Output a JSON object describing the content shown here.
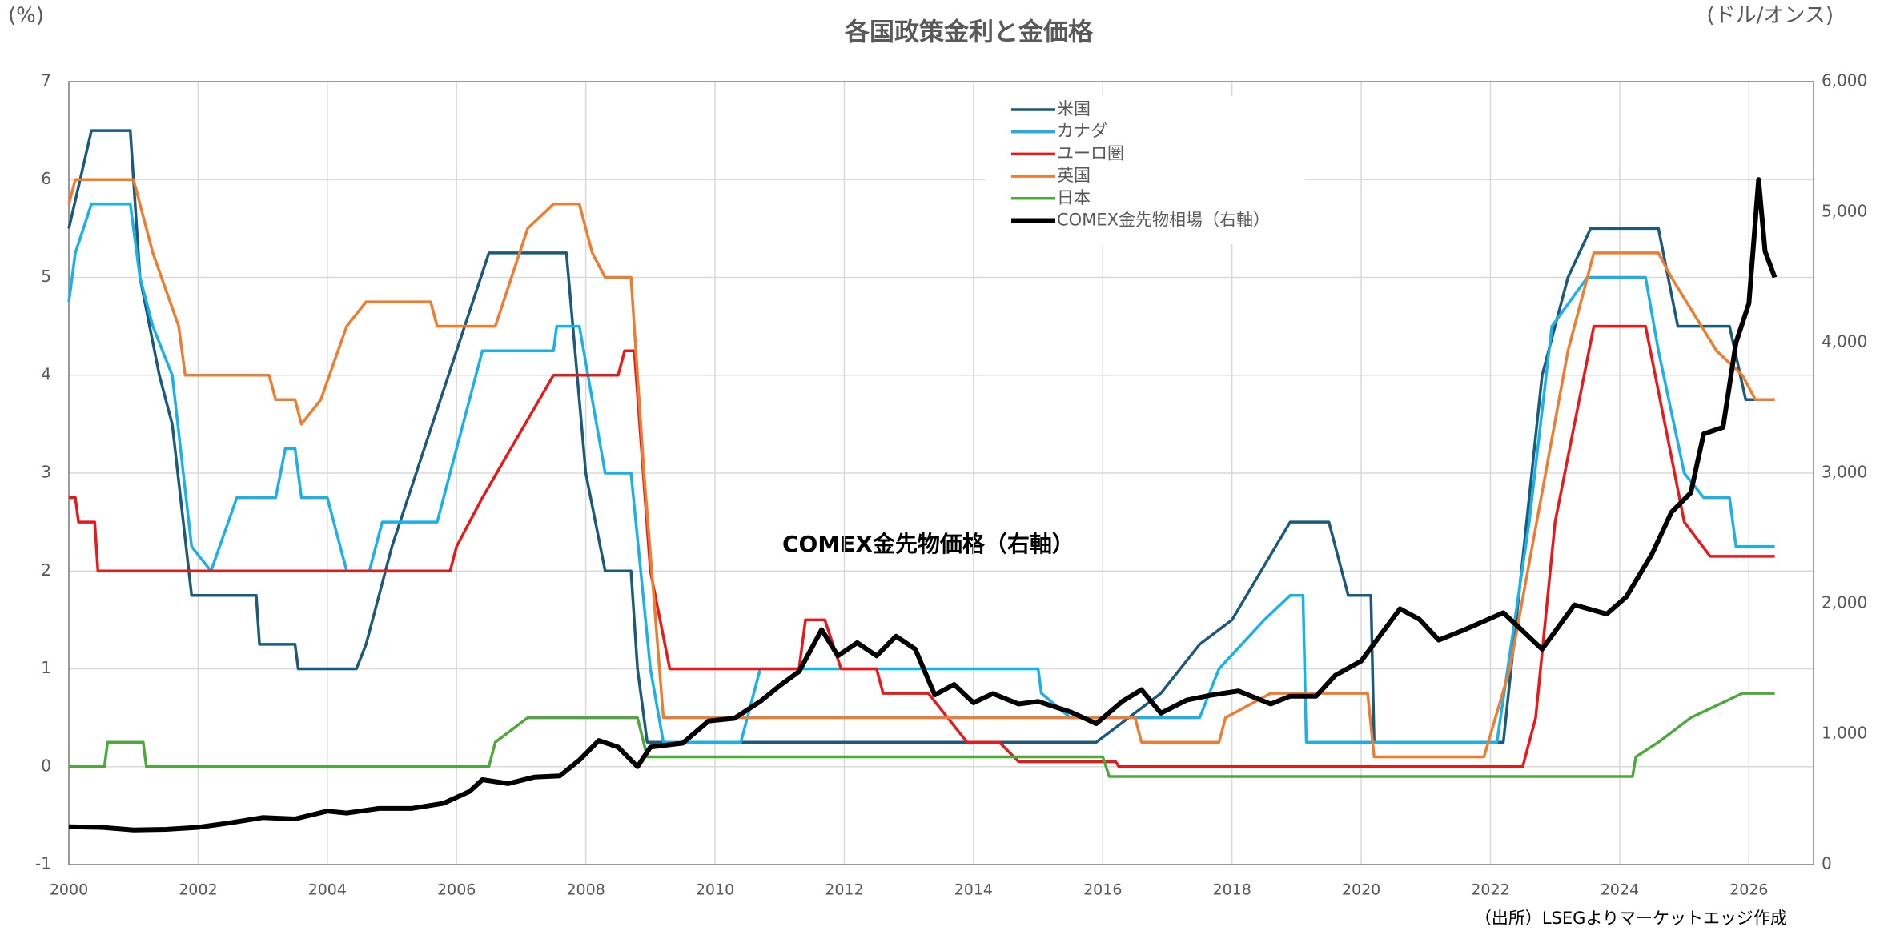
{
  "chart_data": {
    "type": "line",
    "title": "各国政策金利と金価格",
    "y_label": "(%)",
    "y2_label": "(ドル/オンス)",
    "annotation": "COMEX金先物価格（右軸）",
    "source": "（出所）LSEGよりマーケットエッジ作成",
    "xlim": [
      2000,
      2027
    ],
    "xticks": [
      2000,
      2002,
      2004,
      2006,
      2008,
      2010,
      2012,
      2014,
      2016,
      2018,
      2020,
      2022,
      2024,
      2026
    ],
    "ylim": [
      -1,
      7
    ],
    "yticks": [
      -1,
      0,
      1,
      2,
      3,
      4,
      5,
      6,
      7
    ],
    "y2lim": [
      0,
      6000
    ],
    "y2ticks": [
      0,
      {
        "value": 1000,
        "label": "1,000"
      },
      {
        "value": 2000,
        "label": "2,000"
      },
      {
        "value": 3000,
        "label": "3,000"
      },
      {
        "value": 4000,
        "label": "4,000"
      },
      {
        "value": 5000,
        "label": "5,000"
      },
      {
        "value": 6000,
        "label": "6,000"
      }
    ],
    "grid": true,
    "legend_position": "top-center",
    "series": [
      {
        "name": "米国",
        "color": "#1b5a7a",
        "x": [
          2000,
          2000.35,
          2000.95,
          2001.1,
          2001.4,
          2001.6,
          2001.9,
          2002.9,
          2002.95,
          2003.5,
          2003.55,
          2004.45,
          2004.6,
          2005.0,
          2006.5,
          2007.7,
          2008.0,
          2008.3,
          2008.7,
          2008.8,
          2008.95,
          2015.9,
          2016.9,
          2017.5,
          2018.0,
          2018.9,
          2019.5,
          2019.8,
          2020.15,
          2020.2,
          2022.2,
          2022.8,
          2023.2,
          2023.55,
          2024.6,
          2024.9,
          2025.7,
          2025.95,
          2026.4
        ],
        "values": [
          5.5,
          6.5,
          6.5,
          5.0,
          4.0,
          3.5,
          1.75,
          1.75,
          1.25,
          1.25,
          1.0,
          1.0,
          1.25,
          2.25,
          5.25,
          5.25,
          3.0,
          2.0,
          2.0,
          1.0,
          0.25,
          0.25,
          0.75,
          1.25,
          1.5,
          2.5,
          2.5,
          1.75,
          1.75,
          0.25,
          0.25,
          4.0,
          5.0,
          5.5,
          5.5,
          4.5,
          4.5,
          3.75,
          3.75
        ]
      },
      {
        "name": "カナダ",
        "color": "#1ab0e8",
        "x": [
          2000,
          2000.1,
          2000.35,
          2000.95,
          2001.1,
          2001.3,
          2001.6,
          2001.9,
          2002.2,
          2002.6,
          2003.2,
          2003.35,
          2003.5,
          2003.6,
          2004.0,
          2004.3,
          2004.65,
          2004.85,
          2005.7,
          2006.4,
          2007.5,
          2007.55,
          2007.9,
          2008.3,
          2008.7,
          2009.0,
          2009.2,
          2010.4,
          2010.7,
          2015.0,
          2015.05,
          2015.5,
          2017.5,
          2017.8,
          2018.5,
          2018.9,
          2019.1,
          2019.15,
          2022.1,
          2022.6,
          2022.95,
          2023.5,
          2024.4,
          2024.6,
          2025.0,
          2025.3,
          2025.7,
          2025.8,
          2026.4
        ],
        "values": [
          4.75,
          5.25,
          5.75,
          5.75,
          5.0,
          4.5,
          4.0,
          2.25,
          2.0,
          2.75,
          2.75,
          3.25,
          3.25,
          2.75,
          2.75,
          2.0,
          2.0,
          2.5,
          2.5,
          4.25,
          4.25,
          4.5,
          4.5,
          3.0,
          3.0,
          1.0,
          0.25,
          0.25,
          1.0,
          1.0,
          0.75,
          0.5,
          0.5,
          1.0,
          1.5,
          1.75,
          1.75,
          0.25,
          0.25,
          2.5,
          4.5,
          5.0,
          5.0,
          4.25,
          3.0,
          2.75,
          2.75,
          2.25,
          2.25
        ]
      },
      {
        "name": "ユーロ圏",
        "color": "#e8191a",
        "x": [
          2000,
          2000.1,
          2000.15,
          2000.4,
          2000.45,
          2005.9,
          2006.0,
          2006.4,
          2007.5,
          2008.5,
          2008.6,
          2008.75,
          2009.0,
          2009.3,
          2011.3,
          2011.4,
          2011.7,
          2011.95,
          2012.5,
          2012.6,
          2013.3,
          2013.9,
          2014.4,
          2014.7,
          2016.2,
          2016.25,
          2022.5,
          2022.7,
          2023.0,
          2023.6,
          2024.4,
          2025.0,
          2025.4,
          2026.4
        ],
        "values": [
          2.75,
          2.75,
          2.5,
          2.5,
          2.0,
          2.0,
          2.25,
          2.75,
          4.0,
          4.0,
          4.25,
          4.25,
          2.0,
          1.0,
          1.0,
          1.5,
          1.5,
          1.0,
          1.0,
          0.75,
          0.75,
          0.25,
          0.25,
          0.05,
          0.05,
          0,
          0,
          0.5,
          2.5,
          4.5,
          4.5,
          2.5,
          2.15,
          2.15
        ]
      },
      {
        "name": "英国",
        "color": "#ed7d31",
        "x": [
          2000,
          2000.1,
          2001.0,
          2001.3,
          2001.7,
          2001.8,
          2003.1,
          2003.2,
          2003.5,
          2003.6,
          2003.9,
          2004.3,
          2004.6,
          2005.6,
          2005.7,
          2006.6,
          2007.1,
          2007.5,
          2007.9,
          2008.1,
          2008.3,
          2008.7,
          2008.9,
          2009.2,
          2016.5,
          2016.6,
          2017.8,
          2017.9,
          2018.6,
          2020.1,
          2020.2,
          2021.9,
          2022.3,
          2023.2,
          2023.6,
          2024.6,
          2024.8,
          2025.5,
          2025.9,
          2026.1,
          2026.4
        ],
        "values": [
          5.75,
          6.0,
          6.0,
          5.25,
          4.5,
          4.0,
          4.0,
          3.75,
          3.75,
          3.5,
          3.75,
          4.5,
          4.75,
          4.75,
          4.5,
          4.5,
          5.5,
          5.75,
          5.75,
          5.25,
          5.0,
          5.0,
          3.0,
          0.5,
          0.5,
          0.25,
          0.25,
          0.5,
          0.75,
          0.75,
          0.1,
          0.1,
          1.0,
          4.25,
          5.25,
          5.25,
          5.0,
          4.25,
          4.0,
          3.75,
          3.75
        ]
      },
      {
        "name": "日本",
        "color": "#4fa83d",
        "x": [
          2000,
          2000.55,
          2000.6,
          2001.15,
          2001.2,
          2006.5,
          2006.6,
          2007.1,
          2008.8,
          2008.95,
          2016.0,
          2016.1,
          2024.2,
          2024.25,
          2024.6,
          2025.1,
          2025.9,
          2026.4
        ],
        "values": [
          0,
          0,
          0.25,
          0.25,
          0,
          0,
          0.25,
          0.5,
          0.5,
          0.1,
          0.1,
          -0.1,
          -0.1,
          0.1,
          0.25,
          0.5,
          0.75,
          0.75
        ]
      },
      {
        "name": "COMEX金先物相場（右軸）",
        "color": "#000000",
        "axis": "y2",
        "x": [
          2000,
          2000.5,
          2001,
          2001.5,
          2002,
          2002.5,
          2003,
          2003.5,
          2004,
          2004.3,
          2004.8,
          2005.3,
          2005.8,
          2006.2,
          2006.4,
          2006.8,
          2007.2,
          2007.6,
          2007.9,
          2008.2,
          2008.5,
          2008.8,
          2009.0,
          2009.5,
          2009.9,
          2010.3,
          2010.7,
          2011.0,
          2011.3,
          2011.65,
          2011.9,
          2012.2,
          2012.5,
          2012.8,
          2013.1,
          2013.4,
          2013.7,
          2014.0,
          2014.3,
          2014.7,
          2015.0,
          2015.5,
          2015.9,
          2016.3,
          2016.6,
          2016.9,
          2017.3,
          2017.7,
          2018.1,
          2018.6,
          2018.9,
          2019.3,
          2019.6,
          2020.0,
          2020.6,
          2020.9,
          2021.2,
          2021.6,
          2022.2,
          2022.8,
          2023.3,
          2023.8,
          2024.1,
          2024.5,
          2024.8,
          2025.1,
          2025.3,
          2025.6,
          2025.8,
          2026.0,
          2026.15,
          2026.25,
          2026.4
        ],
        "values": [
          290,
          285,
          265,
          270,
          285,
          320,
          360,
          350,
          410,
          395,
          430,
          430,
          470,
          560,
          650,
          620,
          670,
          680,
          800,
          950,
          900,
          750,
          900,
          930,
          1100,
          1120,
          1250,
          1370,
          1480,
          1800,
          1600,
          1700,
          1600,
          1750,
          1650,
          1300,
          1380,
          1240,
          1310,
          1230,
          1250,
          1170,
          1080,
          1250,
          1340,
          1160,
          1260,
          1300,
          1330,
          1230,
          1290,
          1290,
          1450,
          1560,
          1960,
          1880,
          1720,
          1800,
          1930,
          1650,
          1990,
          1920,
          2050,
          2380,
          2700,
          2850,
          3300,
          3350,
          4000,
          4300,
          5250,
          4700,
          4500
        ]
      }
    ]
  }
}
